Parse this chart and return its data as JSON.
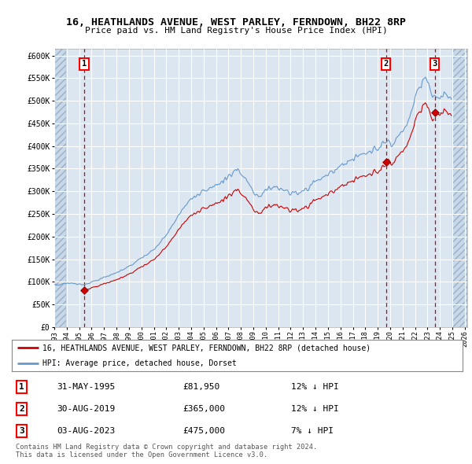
{
  "title": "16, HEATHLANDS AVENUE, WEST PARLEY, FERNDOWN, BH22 8RP",
  "subtitle": "Price paid vs. HM Land Registry's House Price Index (HPI)",
  "ylabel_ticks": [
    "£0",
    "£50K",
    "£100K",
    "£150K",
    "£200K",
    "£250K",
    "£300K",
    "£350K",
    "£400K",
    "£450K",
    "£500K",
    "£550K",
    "£600K"
  ],
  "ytick_values": [
    0,
    50000,
    100000,
    150000,
    200000,
    250000,
    300000,
    350000,
    400000,
    450000,
    500000,
    550000,
    600000
  ],
  "xlim_start": 1993.0,
  "xlim_end": 2026.2,
  "ylim_min": 0,
  "ylim_max": 615000,
  "hatch_right_start": 2025.0,
  "transactions": [
    {
      "num": 1,
      "date": 1995.413,
      "price": 81950,
      "label": "1"
    },
    {
      "num": 2,
      "date": 2019.663,
      "price": 365000,
      "label": "2"
    },
    {
      "num": 3,
      "date": 2023.581,
      "price": 475000,
      "label": "3"
    }
  ],
  "transaction_table": [
    {
      "num": "1",
      "date": "31-MAY-1995",
      "price": "£81,950",
      "hpi": "12% ↓ HPI"
    },
    {
      "num": "2",
      "date": "30-AUG-2019",
      "price": "£365,000",
      "hpi": "12% ↓ HPI"
    },
    {
      "num": "3",
      "date": "03-AUG-2023",
      "price": "£475,000",
      "hpi": "7% ↓ HPI"
    }
  ],
  "legend_red": "16, HEATHLANDS AVENUE, WEST PARLEY, FERNDOWN, BH22 8RP (detached house)",
  "legend_blue": "HPI: Average price, detached house, Dorset",
  "footer1": "Contains HM Land Registry data © Crown copyright and database right 2024.",
  "footer2": "This data is licensed under the Open Government Licence v3.0.",
  "bg_color": "#dce6f1",
  "hatch_color": "#c8d8e8",
  "grid_color": "#ffffff",
  "red_line_color": "#cc0000",
  "blue_line_color": "#6699cc"
}
